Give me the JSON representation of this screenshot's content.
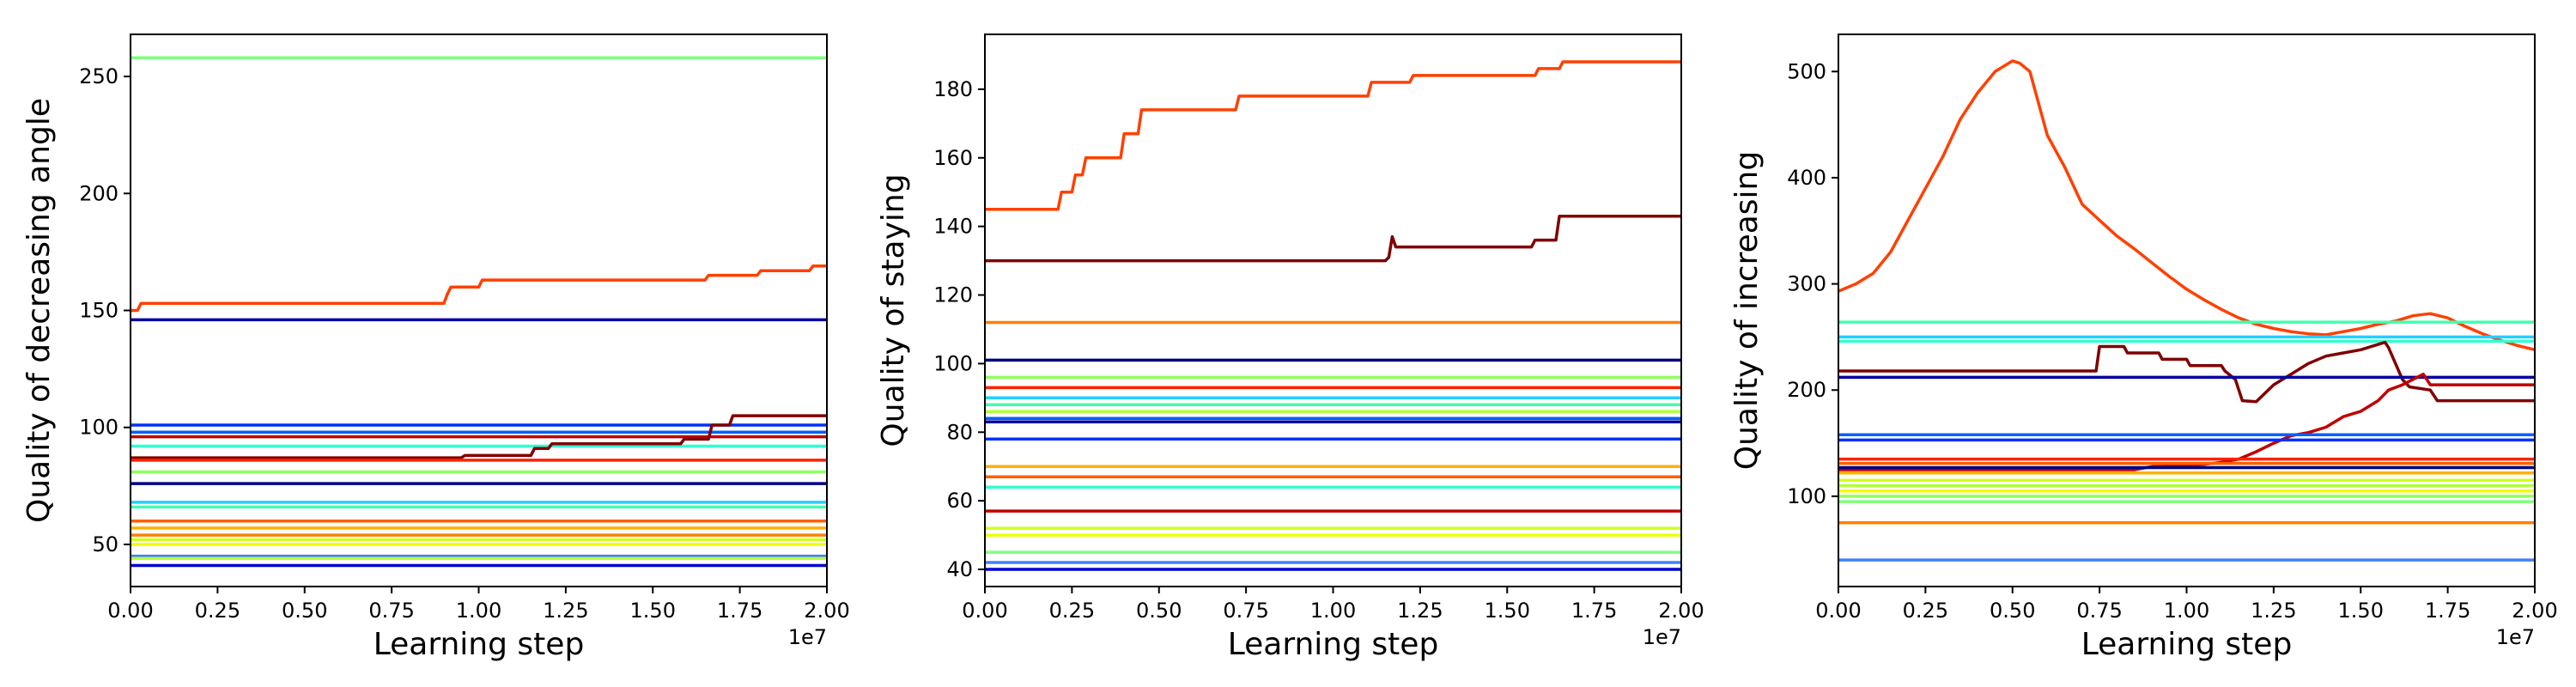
{
  "figure": {
    "background": "#ffffff"
  },
  "chart_data": [
    {
      "type": "line",
      "title": "",
      "xlabel": "Learning step",
      "ylabel": "Quality of decreasing angle",
      "x_offset_label": "1e7",
      "xlim": [
        0,
        2.0
      ],
      "ylim": [
        32,
        268
      ],
      "xticks": [
        "0.00",
        "0.25",
        "0.50",
        "0.75",
        "1.00",
        "1.25",
        "1.50",
        "1.75",
        "2.00"
      ],
      "yticks": [
        50,
        100,
        150,
        200,
        250
      ],
      "grid": false,
      "series": [
        {
          "color": "#7fff7f",
          "x": [
            0,
            2.0
          ],
          "y": [
            258,
            258
          ]
        },
        {
          "color": "#ff4000",
          "x": [
            0,
            0.02,
            0.03,
            0.9,
            0.91,
            0.92,
            1.0,
            1.01,
            1.65,
            1.66,
            1.8,
            1.81,
            1.95,
            1.96,
            2.0
          ],
          "y": [
            150,
            150,
            153,
            153,
            157,
            160,
            160,
            163,
            163,
            165,
            165,
            167,
            167,
            169,
            169
          ]
        },
        {
          "color": "#0000a0",
          "x": [
            0,
            2.0
          ],
          "y": [
            146,
            146
          ]
        },
        {
          "color": "#0030ff",
          "x": [
            0,
            2.0
          ],
          "y": [
            101,
            101
          ]
        },
        {
          "color": "#0060ff",
          "x": [
            0,
            2.0
          ],
          "y": [
            98,
            98
          ]
        },
        {
          "color": "#c00000",
          "x": [
            0,
            2.0
          ],
          "y": [
            96,
            96
          ]
        },
        {
          "color": "#30ffd0",
          "x": [
            0,
            2.0
          ],
          "y": [
            92,
            92
          ]
        },
        {
          "color": "#800000",
          "x": [
            0,
            0.95,
            0.96,
            1.15,
            1.16,
            1.2,
            1.21,
            1.58,
            1.59,
            1.66,
            1.67,
            1.72,
            1.73,
            2.0
          ],
          "y": [
            87,
            87,
            88,
            88,
            91,
            91,
            93,
            93,
            95,
            95,
            101,
            101,
            105,
            105
          ]
        },
        {
          "color": "#ff2000",
          "x": [
            0,
            2.0
          ],
          "y": [
            86,
            86
          ]
        },
        {
          "color": "#90ff60",
          "x": [
            0,
            2.0
          ],
          "y": [
            81,
            81
          ]
        },
        {
          "color": "#000080",
          "x": [
            0,
            2.0
          ],
          "y": [
            76,
            76
          ]
        },
        {
          "color": "#20d0ff",
          "x": [
            0,
            2.0
          ],
          "y": [
            68,
            68
          ]
        },
        {
          "color": "#40ffb0",
          "x": [
            0,
            2.0
          ],
          "y": [
            66,
            66
          ]
        },
        {
          "color": "#ff6000",
          "x": [
            0,
            2.0
          ],
          "y": [
            60,
            60
          ]
        },
        {
          "color": "#ffb000",
          "x": [
            0,
            2.0
          ],
          "y": [
            57,
            57
          ]
        },
        {
          "color": "#ff8000",
          "x": [
            0,
            2.0
          ],
          "y": [
            54,
            54
          ]
        },
        {
          "color": "#d0ff20",
          "x": [
            0,
            2.0
          ],
          "y": [
            52,
            52
          ]
        },
        {
          "color": "#f0ff00",
          "x": [
            0,
            2.0
          ],
          "y": [
            50,
            50
          ]
        },
        {
          "color": "#4080ff",
          "x": [
            0,
            2.0
          ],
          "y": [
            45,
            45
          ]
        },
        {
          "color": "#b0ff40",
          "x": [
            0,
            2.0
          ],
          "y": [
            44,
            44
          ]
        },
        {
          "color": "#0000d0",
          "x": [
            0,
            2.0
          ],
          "y": [
            41,
            41
          ]
        }
      ]
    },
    {
      "type": "line",
      "title": "",
      "xlabel": "Learning step",
      "ylabel": "Quality of staying",
      "x_offset_label": "1e7",
      "xlim": [
        0,
        2.0
      ],
      "ylim": [
        35,
        196
      ],
      "xticks": [
        "0.00",
        "0.25",
        "0.50",
        "0.75",
        "1.00",
        "1.25",
        "1.50",
        "1.75",
        "2.00"
      ],
      "yticks": [
        40,
        60,
        80,
        100,
        120,
        140,
        160,
        180
      ],
      "grid": false,
      "series": [
        {
          "color": "#ff4000",
          "x": [
            0,
            0.21,
            0.22,
            0.25,
            0.26,
            0.28,
            0.29,
            0.39,
            0.4,
            0.44,
            0.45,
            0.72,
            0.73,
            1.1,
            1.11,
            1.22,
            1.23,
            1.58,
            1.59,
            1.65,
            1.66,
            2.0
          ],
          "y": [
            145,
            145,
            150,
            150,
            155,
            155,
            160,
            160,
            167,
            167,
            174,
            174,
            178,
            178,
            182,
            182,
            184,
            184,
            186,
            186,
            188,
            188
          ]
        },
        {
          "color": "#800000",
          "x": [
            0,
            1.15,
            1.16,
            1.17,
            1.18,
            1.57,
            1.58,
            1.64,
            1.65,
            2.0
          ],
          "y": [
            130,
            130,
            131,
            137,
            134,
            134,
            136,
            136,
            143,
            143
          ]
        },
        {
          "color": "#ff8000",
          "x": [
            0,
            2.0
          ],
          "y": [
            112,
            112
          ]
        },
        {
          "color": "#000080",
          "x": [
            0,
            2.0
          ],
          "y": [
            101,
            101
          ]
        },
        {
          "color": "#90ff60",
          "x": [
            0,
            2.0
          ],
          "y": [
            96,
            96
          ]
        },
        {
          "color": "#ff2000",
          "x": [
            0,
            2.0
          ],
          "y": [
            93,
            93
          ]
        },
        {
          "color": "#20d0ff",
          "x": [
            0,
            2.0
          ],
          "y": [
            90,
            90
          ]
        },
        {
          "color": "#40ffb0",
          "x": [
            0,
            2.0
          ],
          "y": [
            88,
            88
          ]
        },
        {
          "color": "#b0ff40",
          "x": [
            0,
            2.0
          ],
          "y": [
            86,
            86
          ]
        },
        {
          "color": "#0060ff",
          "x": [
            0,
            2.0
          ],
          "y": [
            84,
            84
          ]
        },
        {
          "color": "#0000a0",
          "x": [
            0,
            2.0
          ],
          "y": [
            83,
            83
          ]
        },
        {
          "color": "#0030ff",
          "x": [
            0,
            2.0
          ],
          "y": [
            78,
            78
          ]
        },
        {
          "color": "#ffb000",
          "x": [
            0,
            2.0
          ],
          "y": [
            70,
            70
          ]
        },
        {
          "color": "#ff6000",
          "x": [
            0,
            2.0
          ],
          "y": [
            67,
            67
          ]
        },
        {
          "color": "#30ffd0",
          "x": [
            0,
            2.0
          ],
          "y": [
            64,
            64
          ]
        },
        {
          "color": "#c00000",
          "x": [
            0,
            2.0
          ],
          "y": [
            57,
            57
          ]
        },
        {
          "color": "#d0ff20",
          "x": [
            0,
            2.0
          ],
          "y": [
            52,
            52
          ]
        },
        {
          "color": "#f0ff00",
          "x": [
            0,
            2.0
          ],
          "y": [
            50,
            50
          ]
        },
        {
          "color": "#7fff7f",
          "x": [
            0,
            2.0
          ],
          "y": [
            45,
            45
          ]
        },
        {
          "color": "#4080ff",
          "x": [
            0,
            2.0
          ],
          "y": [
            42,
            42
          ]
        },
        {
          "color": "#0000d0",
          "x": [
            0,
            2.0
          ],
          "y": [
            40,
            40
          ]
        }
      ]
    },
    {
      "type": "line",
      "title": "",
      "xlabel": "Learning step",
      "ylabel": "Quality of increasing",
      "x_offset_label": "1e7",
      "xlim": [
        0,
        2.0
      ],
      "ylim": [
        15,
        535
      ],
      "xticks": [
        "0.00",
        "0.25",
        "0.50",
        "0.75",
        "1.00",
        "1.25",
        "1.50",
        "1.75",
        "2.00"
      ],
      "yticks": [
        100,
        200,
        300,
        400,
        500
      ],
      "grid": false,
      "series": [
        {
          "color": "#ff4000",
          "x": [
            0,
            0.05,
            0.1,
            0.15,
            0.2,
            0.25,
            0.3,
            0.35,
            0.4,
            0.45,
            0.5,
            0.52,
            0.55,
            0.6,
            0.65,
            0.7,
            0.75,
            0.8,
            0.85,
            0.9,
            0.95,
            1.0,
            1.05,
            1.1,
            1.15,
            1.2,
            1.25,
            1.3,
            1.35,
            1.4,
            1.45,
            1.5,
            1.55,
            1.6,
            1.65,
            1.7,
            1.75,
            1.8,
            1.85,
            1.9,
            1.95,
            2.0
          ],
          "y": [
            293,
            300,
            310,
            330,
            360,
            390,
            420,
            455,
            480,
            500,
            510,
            508,
            500,
            440,
            410,
            375,
            360,
            345,
            333,
            320,
            307,
            295,
            285,
            276,
            268,
            262,
            258,
            255,
            253,
            252,
            255,
            258,
            262,
            265,
            270,
            272,
            268,
            260,
            253,
            247,
            242,
            238
          ]
        },
        {
          "color": "#40ffb0",
          "x": [
            0,
            2.0
          ],
          "y": [
            264,
            264
          ]
        },
        {
          "color": "#20d0ff",
          "x": [
            0,
            2.0
          ],
          "y": [
            250,
            250
          ]
        },
        {
          "color": "#30ffd0",
          "x": [
            0,
            2.0
          ],
          "y": [
            246,
            246
          ]
        },
        {
          "color": "#800000",
          "x": [
            0,
            0.74,
            0.75,
            0.82,
            0.83,
            0.92,
            0.93,
            1.0,
            1.01,
            1.1,
            1.11,
            1.14,
            1.16,
            1.2,
            1.25,
            1.3,
            1.35,
            1.4,
            1.45,
            1.5,
            1.55,
            1.57,
            1.58,
            1.62,
            1.64,
            1.7,
            1.72,
            2.0
          ],
          "y": [
            218,
            218,
            241,
            241,
            235,
            235,
            229,
            229,
            223,
            223,
            218,
            210,
            190,
            189,
            205,
            215,
            225,
            232,
            235,
            238,
            243,
            245,
            240,
            210,
            203,
            200,
            190,
            190
          ]
        },
        {
          "color": "#0000a0",
          "x": [
            0,
            2.0
          ],
          "y": [
            212,
            212
          ]
        },
        {
          "color": "#c00000",
          "x": [
            0,
            0.85,
            0.9,
            1.0,
            1.05,
            1.1,
            1.15,
            1.2,
            1.25,
            1.3,
            1.35,
            1.4,
            1.45,
            1.5,
            1.55,
            1.58,
            1.62,
            1.68,
            1.7,
            2.0
          ],
          "y": [
            125,
            125,
            128,
            129,
            130,
            132,
            135,
            142,
            150,
            157,
            160,
            165,
            175,
            180,
            190,
            200,
            205,
            215,
            205,
            205
          ]
        },
        {
          "color": "#0060ff",
          "x": [
            0,
            2.0
          ],
          "y": [
            158,
            158
          ]
        },
        {
          "color": "#0030ff",
          "x": [
            0,
            2.0
          ],
          "y": [
            153,
            153
          ]
        },
        {
          "color": "#ff2000",
          "x": [
            0,
            2.0
          ],
          "y": [
            135,
            135
          ]
        },
        {
          "color": "#ff6000",
          "x": [
            0,
            2.0
          ],
          "y": [
            131,
            131
          ]
        },
        {
          "color": "#000080",
          "x": [
            0,
            2.0
          ],
          "y": [
            127,
            127
          ]
        },
        {
          "color": "#ffb000",
          "x": [
            0,
            2.0
          ],
          "y": [
            122,
            122
          ]
        },
        {
          "color": "#d0ff20",
          "x": [
            0,
            2.0
          ],
          "y": [
            115,
            115
          ]
        },
        {
          "color": "#b0ff40",
          "x": [
            0,
            2.0
          ],
          "y": [
            110,
            110
          ]
        },
        {
          "color": "#f0ff00",
          "x": [
            0,
            2.0
          ],
          "y": [
            105,
            105
          ]
        },
        {
          "color": "#90ff60",
          "x": [
            0,
            2.0
          ],
          "y": [
            100,
            100
          ]
        },
        {
          "color": "#7fff7f",
          "x": [
            0,
            2.0
          ],
          "y": [
            95,
            95
          ]
        },
        {
          "color": "#ff8000",
          "x": [
            0,
            2.0
          ],
          "y": [
            75,
            75
          ]
        },
        {
          "color": "#4080ff",
          "x": [
            0,
            2.0
          ],
          "y": [
            40,
            40
          ]
        }
      ]
    }
  ]
}
